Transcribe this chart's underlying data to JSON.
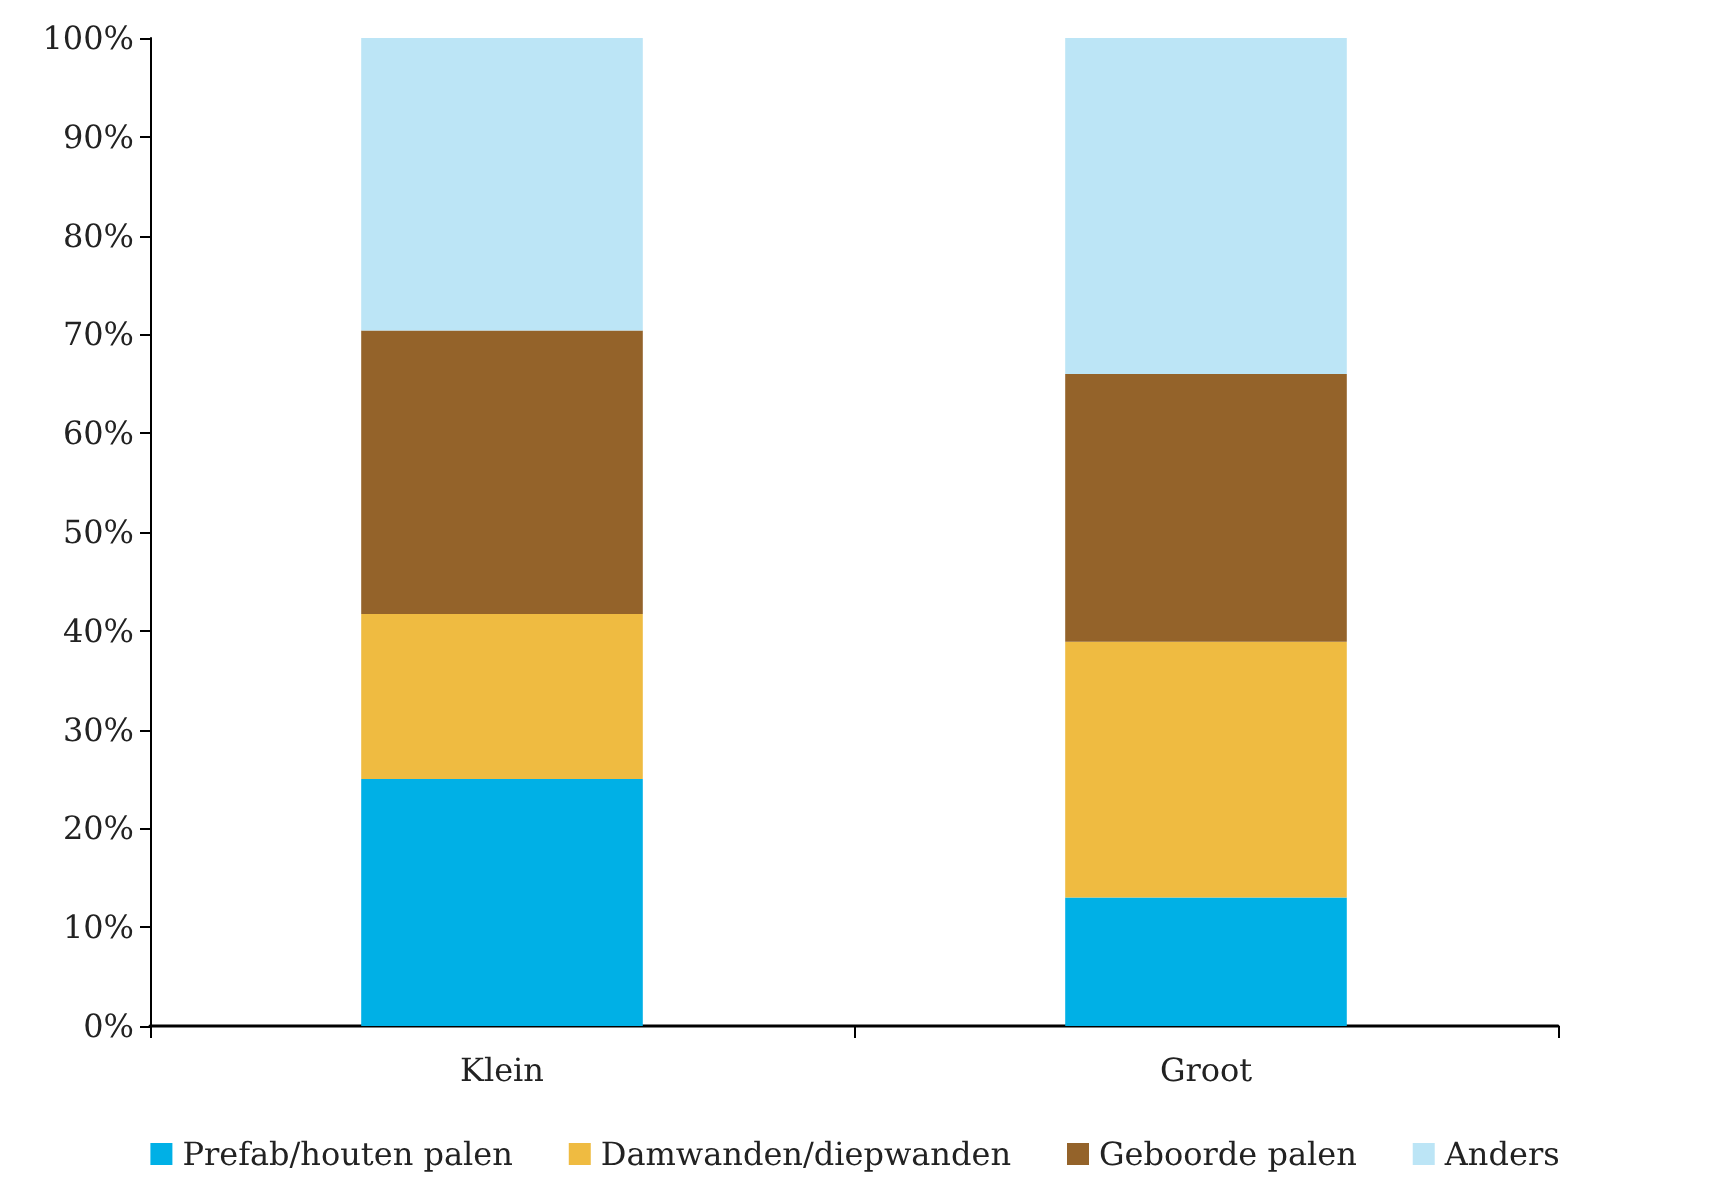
{
  "chart_data": {
    "type": "bar",
    "stacked": true,
    "categories": [
      "Klein",
      "Groot"
    ],
    "series": [
      {
        "name": "Prefab/houten palen",
        "color": "#00b0e6",
        "values": [
          25,
          13
        ]
      },
      {
        "name": "Damwanden/diepwanden",
        "color": "#efbb41",
        "values": [
          16.7,
          25.9
        ]
      },
      {
        "name": "Geboorde palen",
        "color": "#94632a",
        "values": [
          28.7,
          27.1
        ]
      },
      {
        "name": "Anders",
        "color": "#bce5f6",
        "values": [
          29.6,
          34
        ]
      }
    ],
    "ylim": [
      0,
      100
    ],
    "yticks": [
      {
        "value": 0,
        "label": "0%"
      },
      {
        "value": 10,
        "label": "10%"
      },
      {
        "value": 20,
        "label": "20%"
      },
      {
        "value": 30,
        "label": "30%"
      },
      {
        "value": 40,
        "label": "40%"
      },
      {
        "value": 50,
        "label": "50%"
      },
      {
        "value": 60,
        "label": "60%"
      },
      {
        "value": 70,
        "label": "70%"
      },
      {
        "value": 80,
        "label": "80%"
      },
      {
        "value": 90,
        "label": "90%"
      },
      {
        "value": 100,
        "label": "100%"
      }
    ],
    "grid": false,
    "legend": "bottom"
  }
}
